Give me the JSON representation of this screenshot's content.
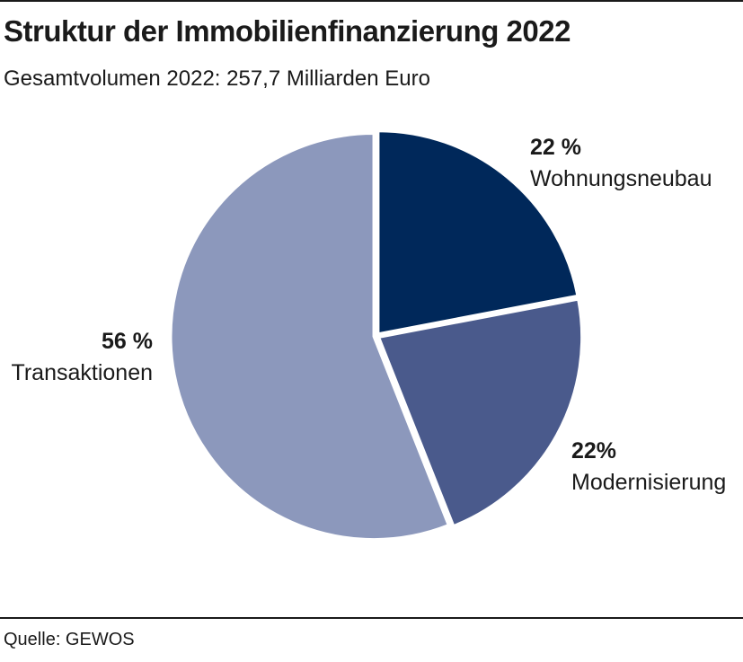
{
  "header": {
    "title": "Struktur der Immobilienfinanzierung 2022",
    "subtitle": "Gesamtvolumen 2022: 257,7 Milliarden Euro"
  },
  "footer": {
    "source": "Quelle: GEWOS"
  },
  "chart_data": {
    "type": "pie",
    "title": "Struktur der Immobilienfinanzierung 2022",
    "subtitle": "Gesamtvolumen 2022: 257,7 Milliarden Euro",
    "slices": [
      {
        "name": "Wohnungsneubau",
        "value": 22,
        "label": "22 %",
        "color": "#00285a"
      },
      {
        "name": "Modernisierung",
        "value": 22,
        "label": "22%",
        "color": "#4a5a8c"
      },
      {
        "name": "Transaktionen",
        "value": 56,
        "label": "56 %",
        "color": "#8c98bc"
      }
    ],
    "start": "top, clockwise",
    "separator_color": "#ffffff"
  }
}
